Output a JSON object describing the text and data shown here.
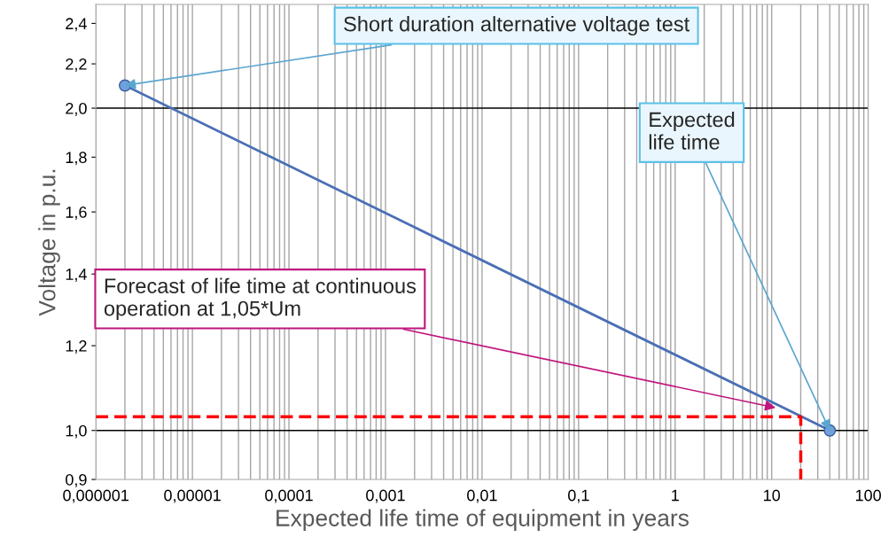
{
  "chart_data": {
    "type": "line",
    "xlabel": "Expected life time of equipment in years",
    "ylabel": "Voltage in p.u.",
    "log": "xy",
    "grid": "x",
    "marker": "circle",
    "line_style": "solid",
    "xlim": [
      1e-06,
      100
    ],
    "xticks": [
      {
        "value": 1e-06,
        "label": "0,000001"
      },
      {
        "value": 1e-05,
        "label": "0,00001"
      },
      {
        "value": 0.0001,
        "label": "0,0001"
      },
      {
        "value": 0.001,
        "label": "0,001"
      },
      {
        "value": 0.01,
        "label": "0,01"
      },
      {
        "value": 0.1,
        "label": "0,1"
      },
      1,
      10,
      100
    ],
    "ylim": [
      0.9,
      2.5
    ],
    "yticks": [
      {
        "value": 0.9,
        "label": "0,9"
      },
      {
        "value": 1.0,
        "label": "1,0"
      },
      {
        "value": 1.2,
        "label": "1,2"
      },
      {
        "value": 1.4,
        "label": "1,4"
      },
      {
        "value": 1.6,
        "label": "1,6"
      },
      {
        "value": 1.8,
        "label": "1,8"
      },
      {
        "value": 2.0,
        "label": "2,0"
      },
      {
        "value": 2.2,
        "label": "2,2"
      },
      {
        "value": 2.4,
        "label": "2,4"
      }
    ],
    "ref_lines": [
      {
        "axis": "y",
        "value": 1.0,
        "color": "#000000"
      },
      {
        "axis": "y",
        "value": 2.0,
        "color": "#000000"
      }
    ],
    "series": [
      {
        "color": "#4a6fb5",
        "x": [
          2e-06,
          40
        ],
        "values": [
          2.1,
          1.0
        ]
      },
      {
        "color": "#ff0000",
        "marker": "none",
        "line_style": "dashed",
        "x": [
          1e-06,
          20,
          20
        ],
        "values": [
          1.03,
          1.03,
          0.9
        ]
      }
    ],
    "annotations": [
      {
        "text": "Short duration alternative voltage test",
        "x": 2e-06,
        "y": 2.1
      },
      {
        "text": "Expected\nlife time",
        "x": 40,
        "y": 1.0
      },
      {
        "text": "Forecast of life time at continuous\noperation at 1,05*Um",
        "x": 11,
        "y": 1.05
      }
    ]
  }
}
